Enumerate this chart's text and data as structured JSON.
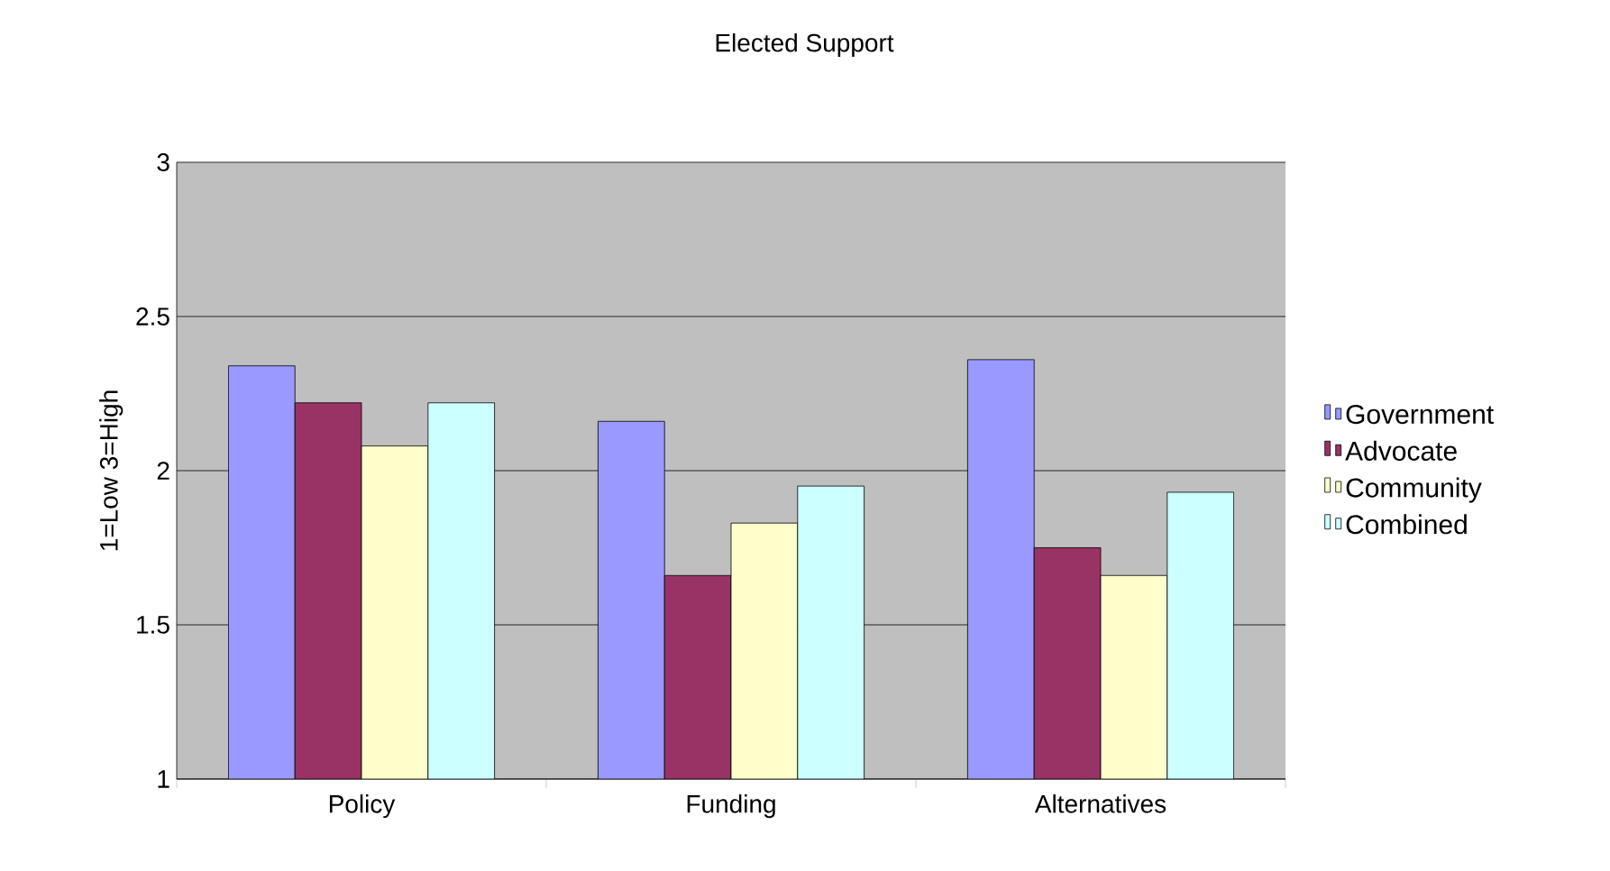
{
  "chart_data": {
    "type": "bar",
    "title": "Elected Support",
    "ylabel": "1=Low 3=High",
    "categories": [
      "Policy",
      "Funding",
      "Alternatives"
    ],
    "series": [
      {
        "name": "Government",
        "color": "#9999ff",
        "values": [
          2.34,
          2.16,
          2.36
        ]
      },
      {
        "name": "Advocate",
        "color": "#993366",
        "values": [
          2.22,
          1.66,
          1.75
        ]
      },
      {
        "name": "Community",
        "color": "#ffffcc",
        "values": [
          2.08,
          1.83,
          1.66
        ]
      },
      {
        "name": "Combined",
        "color": "#ccffff",
        "values": [
          2.22,
          1.95,
          1.93
        ]
      }
    ],
    "ylim": [
      1,
      3
    ],
    "yticks": [
      1,
      1.5,
      2,
      2.5,
      3
    ],
    "grid": "y",
    "legend": "right"
  }
}
